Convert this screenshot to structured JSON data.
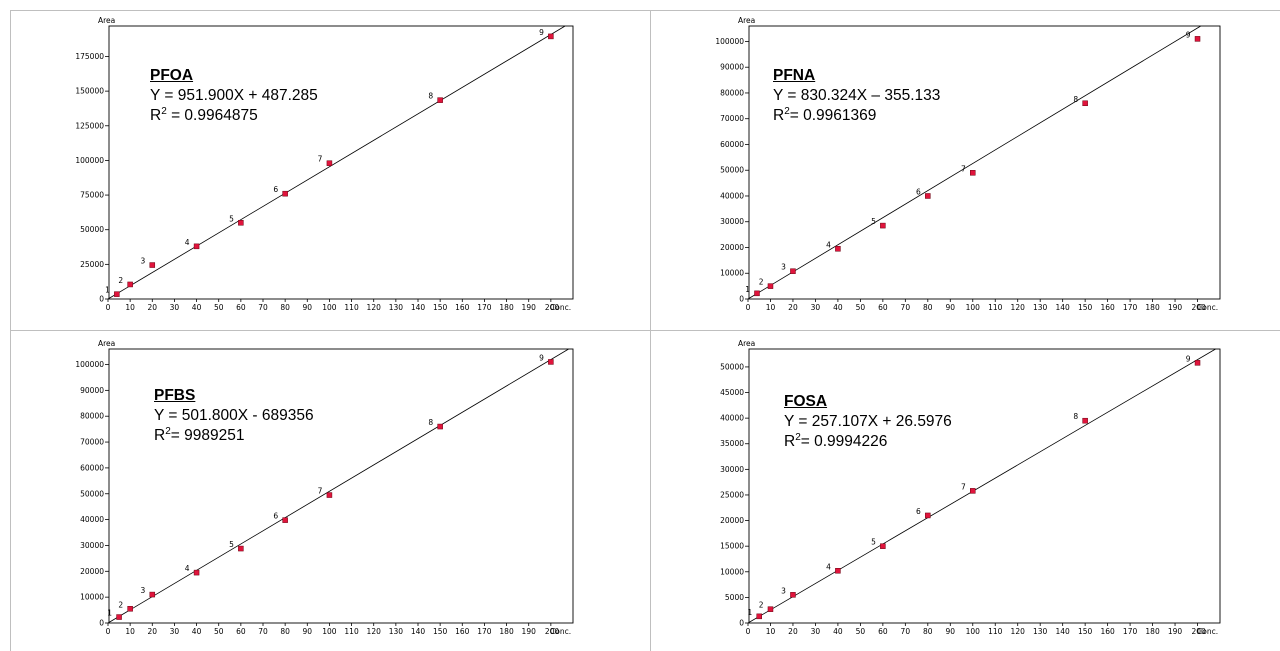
{
  "page": {
    "background": "#ffffff",
    "border_color": "#bfbfbf",
    "point_color": "#e0143c"
  },
  "charts": [
    {
      "title": "PFOA",
      "eq_lhs": "Y = ",
      "eq_rhs": " 951.900X + 487.285",
      "r2_lhs": "R",
      "r2_sup": "2",
      "r2_rhs": " =  0.9964875"
    },
    {
      "title": "PFNA",
      "eq_lhs": "Y = ",
      "eq_rhs": "830.324X – 355.133",
      "r2_lhs": "R",
      "r2_sup": "2",
      "r2_rhs": "= 0.9961369"
    },
    {
      "title": "PFBS",
      "eq_lhs": "Y = ",
      "eq_rhs": "501.800X - 689356",
      "r2_lhs": "R",
      "r2_sup": "2",
      "r2_rhs": "= 9989251"
    },
    {
      "title": "FOSA",
      "eq_lhs": "Y = ",
      "eq_rhs": "257.107X + 26.5976",
      "r2_lhs": "R",
      "r2_sup": "2",
      "r2_rhs": "= 0.9994226"
    }
  ],
  "chart_data": [
    {
      "type": "scatter",
      "title": "PFOA",
      "ylabel": "Area",
      "xlabel": "Conc.",
      "xlim": [
        0,
        210
      ],
      "ylim": [
        0,
        197000
      ],
      "x_ticks": [
        "0",
        "10",
        "20",
        "30",
        "40",
        "50",
        "60",
        "70",
        "80",
        "90",
        "100",
        "110",
        "120",
        "130",
        "140",
        "150",
        "160",
        "170",
        "180",
        "190",
        "200"
      ],
      "y_ticks": [
        0,
        25000,
        50000,
        75000,
        100000,
        125000,
        150000,
        175000
      ],
      "y_tick_labels": [
        "0",
        "25000",
        "50000",
        "75000",
        "100000",
        "125000",
        "150000",
        "175000"
      ],
      "point_labels": [
        "1",
        "2",
        "3",
        "4",
        "5",
        "6",
        "7",
        "8",
        "9"
      ],
      "x": [
        4,
        10,
        20,
        40,
        60,
        80,
        100,
        150,
        200
      ],
      "y": [
        3500,
        10500,
        24500,
        38000,
        55000,
        76000,
        98000,
        143500,
        189500
      ],
      "line": {
        "x": [
          0,
          210
        ],
        "y": [
          0,
          200400
        ]
      }
    },
    {
      "type": "scatter",
      "title": "PFNA",
      "ylabel": "Area",
      "xlabel": "Conc.",
      "xlim": [
        0,
        210
      ],
      "ylim": [
        0,
        106000
      ],
      "x_ticks": [
        "0",
        "10",
        "20",
        "30",
        "40",
        "50",
        "60",
        "70",
        "80",
        "90",
        "100",
        "110",
        "120",
        "130",
        "140",
        "150",
        "160",
        "170",
        "180",
        "190",
        "200"
      ],
      "y_ticks": [
        0,
        10000,
        20000,
        30000,
        40000,
        50000,
        60000,
        70000,
        80000,
        90000,
        100000
      ],
      "y_tick_labels": [
        "0",
        "10000",
        "20000",
        "30000",
        "40000",
        "50000",
        "60000",
        "70000",
        "80000",
        "90000",
        "100000"
      ],
      "point_labels": [
        "1",
        "2",
        "3",
        "4",
        "5",
        "6",
        "7",
        "8",
        "9"
      ],
      "x": [
        4,
        10,
        20,
        40,
        60,
        80,
        100,
        150,
        200
      ],
      "y": [
        2200,
        5000,
        10800,
        19500,
        28500,
        40000,
        49000,
        76000,
        101000
      ],
      "line": {
        "x": [
          0,
          210
        ],
        "y": [
          0,
          110500
        ]
      }
    },
    {
      "type": "scatter",
      "title": "PFBS",
      "ylabel": "Area",
      "xlabel": "Conc.",
      "xlim": [
        0,
        210
      ],
      "ylim": [
        0,
        106000
      ],
      "x_ticks": [
        "0",
        "10",
        "20",
        "30",
        "40",
        "50",
        "60",
        "70",
        "80",
        "90",
        "100",
        "110",
        "120",
        "130",
        "140",
        "150",
        "160",
        "170",
        "180",
        "190",
        "200"
      ],
      "y_ticks": [
        0,
        10000,
        20000,
        30000,
        40000,
        50000,
        60000,
        70000,
        80000,
        90000,
        100000
      ],
      "y_tick_labels": [
        "0",
        "10000",
        "20000",
        "30000",
        "40000",
        "50000",
        "60000",
        "70000",
        "80000",
        "90000",
        "100000"
      ],
      "point_labels": [
        "1",
        "2",
        "3",
        "4",
        "5",
        "6",
        "7",
        "8",
        "9"
      ],
      "x": [
        5,
        10,
        20,
        40,
        60,
        80,
        100,
        150,
        200
      ],
      "y": [
        2300,
        5500,
        11000,
        19500,
        28800,
        39800,
        49500,
        76000,
        101000
      ],
      "line": {
        "x": [
          0,
          210
        ],
        "y": [
          0,
          107000
        ]
      }
    },
    {
      "type": "scatter",
      "title": "FOSA",
      "ylabel": "Area",
      "xlabel": "Conc.",
      "xlim": [
        0,
        210
      ],
      "ylim": [
        0,
        53500
      ],
      "x_ticks": [
        "0",
        "10",
        "20",
        "30",
        "40",
        "50",
        "60",
        "70",
        "80",
        "90",
        "100",
        "110",
        "120",
        "130",
        "140",
        "150",
        "160",
        "170",
        "180",
        "190",
        "200"
      ],
      "y_ticks": [
        0,
        5000,
        10000,
        15000,
        20000,
        25000,
        30000,
        35000,
        40000,
        45000,
        50000
      ],
      "y_tick_labels": [
        "0",
        "5000",
        "10000",
        "15000",
        "20000",
        "25000",
        "30000",
        "35000",
        "40000",
        "45000",
        "50000"
      ],
      "point_labels": [
        "1",
        "2",
        "3",
        "4",
        "5",
        "6",
        "7",
        "8",
        "9"
      ],
      "x": [
        5,
        10,
        20,
        40,
        60,
        80,
        100,
        150,
        200
      ],
      "y": [
        1300,
        2700,
        5500,
        10200,
        15000,
        21000,
        25800,
        39500,
        50800
      ],
      "line": {
        "x": [
          0,
          210
        ],
        "y": [
          0,
          54000
        ]
      }
    }
  ]
}
